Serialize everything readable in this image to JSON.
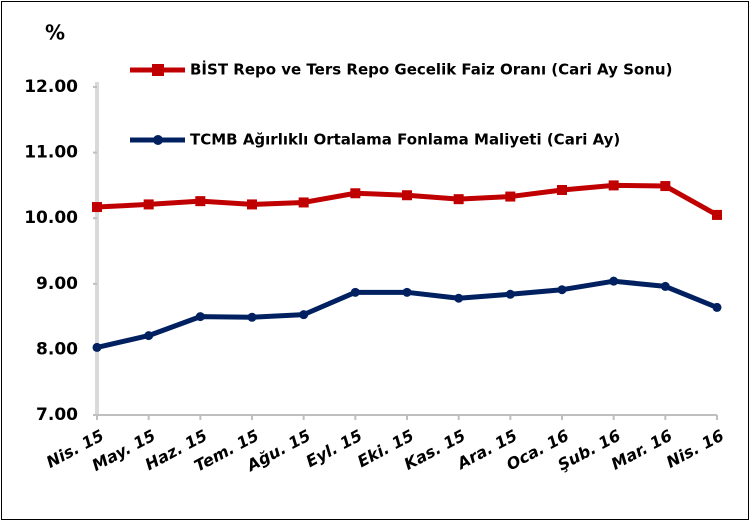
{
  "chart_data": {
    "type": "line",
    "y_label": "%",
    "categories": [
      "Nis. 15",
      "May. 15",
      "Haz. 15",
      "Tem. 15",
      "Ağu. 15",
      "Eyl. 15",
      "Eki. 15",
      "Kas. 15",
      "Ara. 15",
      "Oca. 16",
      "Şub. 16",
      "Mar. 16",
      "Nis. 16"
    ],
    "series": [
      {
        "name": "BİST Repo ve Ters Repo Gecelik Faiz Oranı (Cari Ay Sonu)",
        "color": "#c00000",
        "marker": "square",
        "values": [
          10.17,
          10.21,
          10.26,
          10.21,
          10.24,
          10.38,
          10.35,
          10.29,
          10.33,
          10.43,
          10.5,
          10.49,
          10.05
        ]
      },
      {
        "name": "TCMB Ağırlıklı Ortalama Fonlama Maliyeti (Cari Ay)",
        "color": "#002060",
        "marker": "circle",
        "values": [
          8.03,
          8.21,
          8.5,
          8.49,
          8.53,
          8.87,
          8.87,
          8.78,
          8.84,
          8.91,
          9.04,
          8.96,
          8.64
        ]
      }
    ],
    "ylim": [
      7,
      12
    ],
    "yticks": [
      {
        "value": 7,
        "label": "7.00"
      },
      {
        "value": 8,
        "label": "8.00"
      },
      {
        "value": 9,
        "label": "9.00"
      },
      {
        "value": 10,
        "label": "10.00"
      },
      {
        "value": 11,
        "label": "11.00"
      },
      {
        "value": 12,
        "label": "12.00"
      }
    ],
    "grid": false
  }
}
